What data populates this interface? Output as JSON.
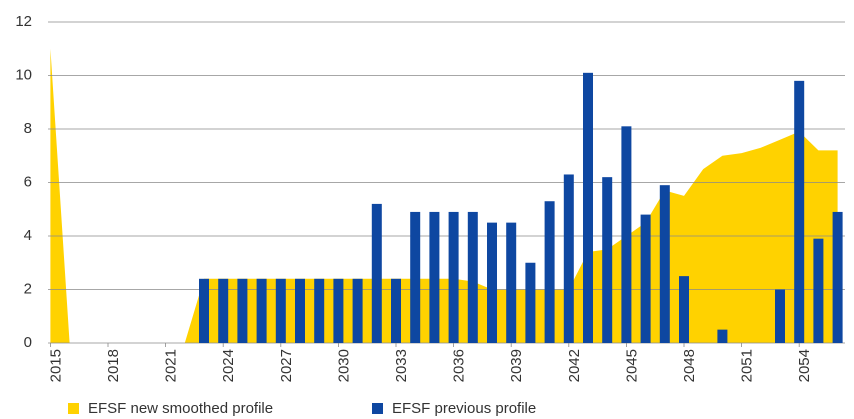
{
  "chart_data": {
    "type": "bar+area",
    "x": [
      2015,
      2016,
      2017,
      2018,
      2019,
      2020,
      2021,
      2022,
      2023,
      2024,
      2025,
      2026,
      2027,
      2028,
      2029,
      2030,
      2031,
      2032,
      2033,
      2034,
      2035,
      2036,
      2037,
      2038,
      2039,
      2040,
      2041,
      2042,
      2043,
      2044,
      2045,
      2046,
      2047,
      2048,
      2049,
      2050,
      2051,
      2052,
      2053,
      2054,
      2055,
      2056
    ],
    "series": [
      {
        "name": "EFSF new smoothed profile",
        "color": "#ffd200",
        "kind": "area",
        "values": [
          11,
          0,
          0,
          0,
          0,
          0,
          0,
          0,
          2.4,
          2.4,
          2.4,
          2.4,
          2.4,
          2.4,
          2.4,
          2.4,
          2.4,
          2.4,
          2.4,
          2.4,
          2.4,
          2.4,
          2.3,
          2.0,
          2.0,
          2.0,
          2.0,
          2.0,
          3.4,
          3.5,
          4.0,
          4.5,
          5.7,
          5.5,
          6.5,
          7.0,
          7.1,
          7.3,
          7.6,
          7.9,
          7.2,
          7.2
        ]
      },
      {
        "name": "EFSF previous profile",
        "color": "#0e47a1",
        "kind": "bar",
        "values": [
          null,
          null,
          null,
          null,
          null,
          null,
          null,
          null,
          2.4,
          2.4,
          2.4,
          2.4,
          2.4,
          2.4,
          2.4,
          2.4,
          2.4,
          5.2,
          2.4,
          4.9,
          4.9,
          4.9,
          4.9,
          4.5,
          4.5,
          3.0,
          5.3,
          6.3,
          10.1,
          6.2,
          8.1,
          4.8,
          5.9,
          2.5,
          null,
          0.5,
          null,
          null,
          2.0,
          9.8,
          3.9,
          4.9
        ]
      }
    ],
    "xlim": [
      2015,
      2057
    ],
    "xticks": [
      2015,
      2018,
      2021,
      2024,
      2027,
      2030,
      2033,
      2036,
      2039,
      2042,
      2045,
      2048,
      2051,
      2054,
      2057
    ],
    "ylim": [
      0,
      12
    ],
    "yticks": [
      0,
      2,
      4,
      6,
      8,
      10,
      12
    ],
    "grid": true
  }
}
